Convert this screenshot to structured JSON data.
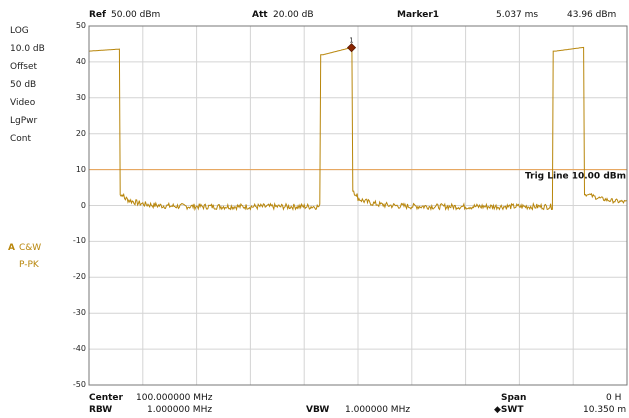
{
  "header": {
    "ref_label": "Ref",
    "ref_value": "50.00 dBm",
    "att_label": "Att",
    "att_value": "20.00 dB",
    "marker_label": "Marker1",
    "marker_time": "5.037 ms",
    "marker_level": "43.96 dBm"
  },
  "sidebar": {
    "scale_mode": "LOG",
    "scale_div": "10.0 dB",
    "offset_label": "Offset",
    "offset_value": "50 dB",
    "video_label": "Video",
    "video_value": "LgPwr",
    "sweep_mode": "Cont",
    "trace_letter": "A",
    "trace_name": "C&W",
    "trace_detector": "P-PK"
  },
  "axis": {
    "y_ticks": [
      "50",
      "40",
      "30",
      "20",
      "10",
      "0",
      "-10",
      "-20",
      "-30",
      "-40",
      "-50"
    ],
    "y_min": -50,
    "y_max": 50
  },
  "plot": {
    "trigger_line_label": "Trig Line 10.00 dBm",
    "trigger_level": 10,
    "marker_number": "1",
    "marker_level": 43.96,
    "marker_x_frac": 0.488,
    "trace_color": "#b8860b",
    "trigger_color": "#e8a050",
    "marker_color": "#8b2500"
  },
  "footer": {
    "center_label": "Center",
    "center_value": "100.000000 MHz",
    "span_label": "Span",
    "span_value": "0 H",
    "rbw_label": "RBW",
    "rbw_value": "1.000000 MHz",
    "vbw_label": "VBW",
    "vbw_value": "1.000000 MHz",
    "swt_label": "◆SWT",
    "swt_value": "10.350 m"
  }
}
